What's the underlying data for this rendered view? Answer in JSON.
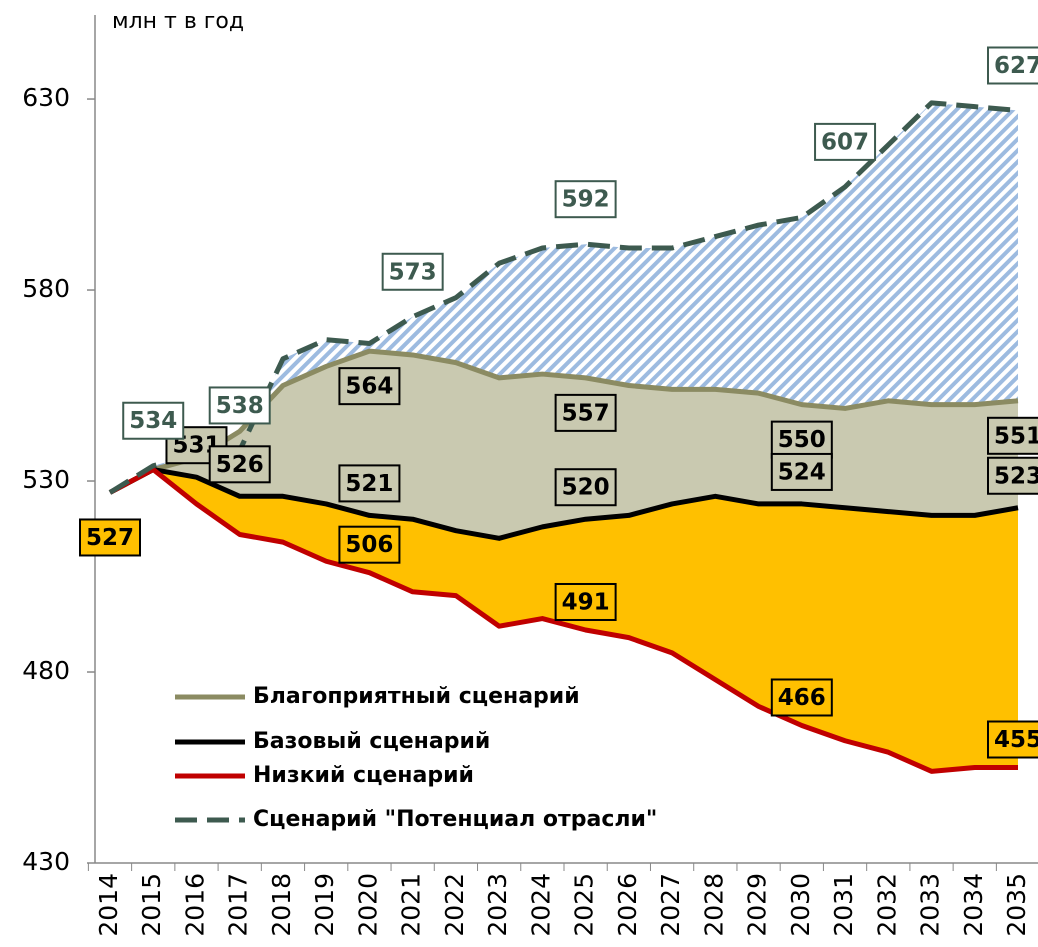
{
  "chart_data": {
    "type": "line",
    "y_label": "млн т в год",
    "categories": [
      "2014",
      "2015",
      "2016",
      "2017",
      "2018",
      "2019",
      "2020",
      "2021",
      "2022",
      "2023",
      "2024",
      "2025",
      "2026",
      "2027",
      "2028",
      "2029",
      "2030",
      "2031",
      "2032",
      "2033",
      "2034",
      "2035"
    ],
    "ylim": [
      430,
      652
    ],
    "yticks": [
      430,
      480,
      530,
      580,
      630
    ],
    "legend": "lower-left",
    "series": [
      {
        "name": "Благоприятный сценарий",
        "color": "#8b8b62",
        "label_fill": "#c9c9b0",
        "label_text": "#000000",
        "values": [
          527,
          533,
          536,
          543,
          555,
          560,
          564,
          563,
          561,
          557,
          558,
          557,
          555,
          554,
          554,
          553,
          550,
          549,
          551,
          550,
          550,
          551
        ],
        "value_labels": [
          null,
          null,
          null,
          null,
          null,
          null,
          "564",
          null,
          null,
          null,
          null,
          "557",
          null,
          null,
          null,
          null,
          "550",
          null,
          null,
          null,
          null,
          "551"
        ]
      },
      {
        "name": "Базовый сценарий",
        "color": "#000000",
        "label_fill": "#c9c9b0",
        "label_text": "#000000",
        "values": [
          527,
          533,
          531,
          526,
          526,
          524,
          521,
          520,
          517,
          515,
          518,
          520,
          521,
          524,
          526,
          524,
          524,
          523,
          522,
          521,
          521,
          523
        ],
        "value_labels": [
          null,
          null,
          "531",
          "526",
          null,
          null,
          "521",
          null,
          null,
          null,
          null,
          "520",
          null,
          null,
          null,
          null,
          "524",
          null,
          null,
          null,
          null,
          "523"
        ]
      },
      {
        "name": "Низкий сценарий",
        "color": "#c00000",
        "label_fill": "#ffc000",
        "label_text": "#000000",
        "values": [
          527,
          533,
          524,
          516,
          514,
          509,
          506,
          501,
          500,
          492,
          494,
          491,
          489,
          485,
          478,
          471,
          466,
          462,
          459,
          454,
          455,
          455
        ],
        "value_labels": [
          "527",
          null,
          null,
          null,
          null,
          null,
          "506",
          null,
          null,
          null,
          null,
          "491",
          null,
          null,
          null,
          null,
          "466",
          null,
          null,
          null,
          null,
          "455"
        ]
      },
      {
        "name": "Сценарий \"Потенциал отрасли\"",
        "color": "#3d5a4f",
        "dashed": true,
        "label_fill": "#ffffff",
        "label_text": "#3d5a4f",
        "values": [
          527,
          534,
          537,
          538,
          562,
          567,
          566,
          573,
          578,
          587,
          591,
          592,
          591,
          591,
          594,
          597,
          599,
          607,
          618,
          629,
          628,
          627
        ],
        "value_labels": [
          null,
          "534",
          null,
          "538",
          null,
          null,
          null,
          "573",
          null,
          null,
          null,
          "592",
          null,
          null,
          null,
          null,
          null,
          "607",
          null,
          null,
          null,
          "627"
        ]
      }
    ]
  }
}
